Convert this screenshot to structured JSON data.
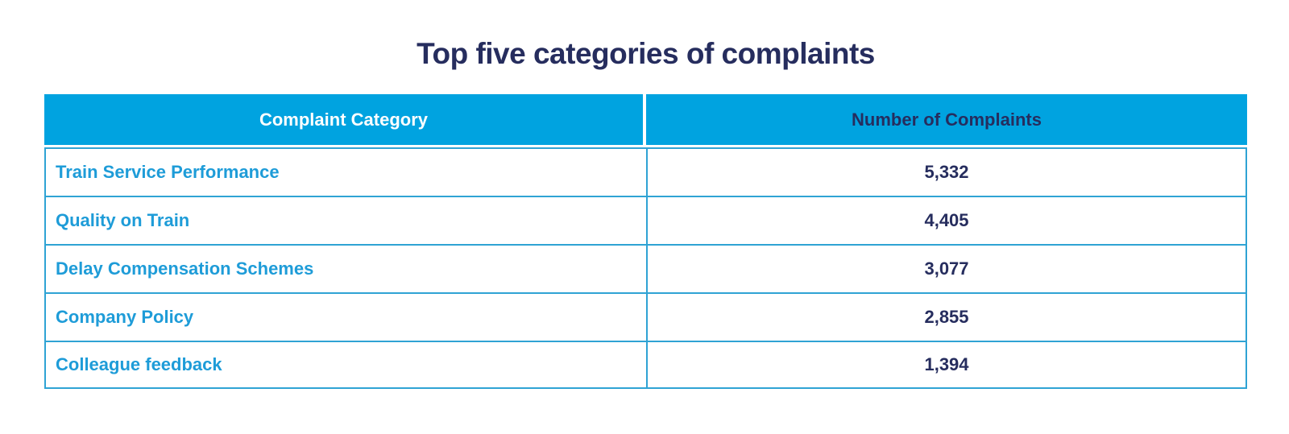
{
  "title": "Top five categories of complaints",
  "colors": {
    "header_bg": "#00A3E0",
    "border_blue": "#2FA3D4",
    "category_text": "#1E9CD8",
    "navy": "#262D5E",
    "header_left_text": "#FFFFFF",
    "page_bg": "#FFFFFF"
  },
  "table": {
    "columns": {
      "category": "Complaint Category",
      "count": "Number of Complaints"
    },
    "rows": [
      {
        "category": "Train Service Performance",
        "count": "5,332"
      },
      {
        "category": "Quality on Train",
        "count": "4,405"
      },
      {
        "category": "Delay Compensation Schemes",
        "count": "3,077"
      },
      {
        "category": "Company Policy",
        "count": "2,855"
      },
      {
        "category": "Colleague feedback",
        "count": "1,394"
      }
    ]
  },
  "chart_data": {
    "type": "table",
    "title": "Top five categories of complaints",
    "columns": [
      "Complaint Category",
      "Number of Complaints"
    ],
    "categories": [
      "Train Service Performance",
      "Quality on Train",
      "Delay Compensation Schemes",
      "Company Policy",
      "Colleague feedback"
    ],
    "values": [
      5332,
      4405,
      3077,
      2855,
      1394
    ]
  }
}
